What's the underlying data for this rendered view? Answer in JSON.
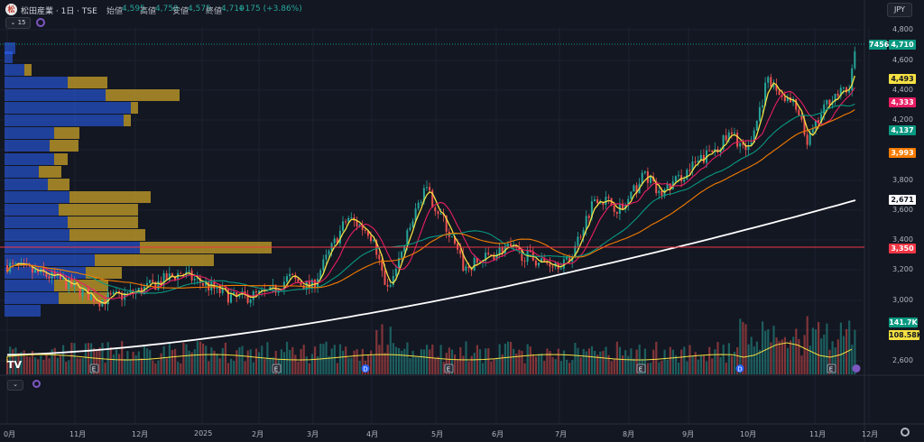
{
  "header": {
    "logo_text": "松",
    "symbol_title": "松田産業 · 1日 · TSE",
    "open_label": "始値",
    "open_value": "4,595",
    "high_label": "高値",
    "high_value": "4,750",
    "low_label": "安値",
    "low_value": "4,575",
    "close_label": "終値",
    "close_value": "4,710",
    "change": "+175 (+3.86%)",
    "currency": "JPY",
    "indicator_count": "15"
  },
  "price_axis": {
    "ticks": [
      "4,800",
      "4,600",
      "4,400",
      "4,200",
      "3,800",
      "3,600",
      "3,400",
      "3,200",
      "3,000",
      "2,600"
    ],
    "labels": {
      "code": "7456",
      "last": "4,710",
      "ma_short": "4,493",
      "ma_mid": "4,333",
      "ma_long1": "4,137",
      "ma_long2": "3,993",
      "ma_200": "2,671",
      "poc": "3,350",
      "volume": "141.7K",
      "volume_ma": "108.58K"
    }
  },
  "time_axis": {
    "ticks": [
      "0月",
      "11月",
      "12月",
      "2025",
      "2月",
      "3月",
      "4月",
      "5月",
      "6月",
      "7月",
      "8月",
      "9月",
      "10月",
      "11月",
      "12月"
    ]
  },
  "markers": {
    "earnings": "E",
    "dividend": "D",
    "tv_logo": "TV"
  },
  "colors": {
    "background": "#131722",
    "up": "#26a69a",
    "down": "#ef5350",
    "ma_short": "#f5e042",
    "ma_mid": "#e91e63",
    "ma_long1": "#089981",
    "ma_long2": "#f57c00",
    "ma_200": "#ffffff",
    "poc": "#f23645",
    "vp_blue": "#2962ff",
    "vp_gold": "#c9a227"
  },
  "chart_data": {
    "type": "candlestick",
    "title": "松田産業 · 1日 · TSE",
    "x_start": "2024-10",
    "x_end": "2025-12",
    "ylim": [
      2500,
      4850
    ],
    "poc_price": 3350,
    "ma_values_last": {
      "short": 4493,
      "mid": 4333,
      "long1": 4137,
      "long2": 3993,
      "ma200": 2671
    },
    "last_close": 4710,
    "last_volume": "141.7K",
    "volume_ma": "108.58K"
  }
}
